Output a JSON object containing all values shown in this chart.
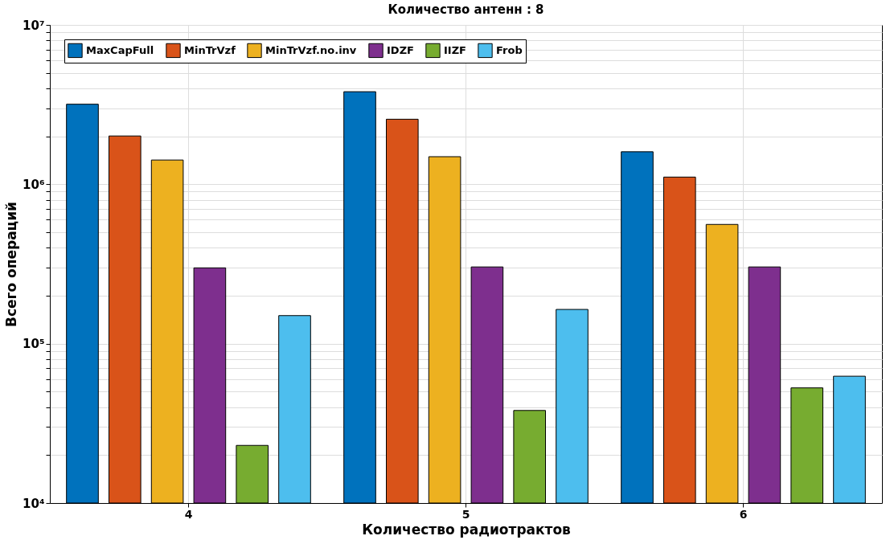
{
  "chart_data": {
    "type": "bar",
    "title": "Количество антенн : 8",
    "xlabel": "Количество радиотрактов",
    "ylabel": "Всего операций",
    "categories": [
      "4",
      "5",
      "6"
    ],
    "series": [
      {
        "name": "MaxCapFull",
        "color": "#0072bd",
        "values": [
          3180000,
          3810000,
          1600000
        ]
      },
      {
        "name": "MinTrVzf",
        "color": "#d95319",
        "values": [
          2010000,
          2560000,
          1110000
        ]
      },
      {
        "name": "MinTrVzf.no.inv",
        "color": "#edb120",
        "values": [
          1420000,
          1490000,
          560000
        ]
      },
      {
        "name": "IDZF",
        "color": "#7e2f8e",
        "values": [
          299000,
          303000,
          303000
        ]
      },
      {
        "name": "IIZF",
        "color": "#77ac30",
        "values": [
          23000,
          38100,
          52800
        ]
      },
      {
        "name": "Frob",
        "color": "#4dbeee",
        "values": [
          150000,
          164000,
          62500
        ]
      }
    ],
    "log": true,
    "ylim": [
      10000,
      10000000
    ],
    "yticks": [
      {
        "value": 10000,
        "label": "10⁴"
      },
      {
        "value": 20000,
        "label": null
      },
      {
        "value": 30000,
        "label": null
      },
      {
        "value": 40000,
        "label": null
      },
      {
        "value": 50000,
        "label": null
      },
      {
        "value": 60000,
        "label": null
      },
      {
        "value": 70000,
        "label": null
      },
      {
        "value": 80000,
        "label": null
      },
      {
        "value": 90000,
        "label": null
      },
      {
        "value": 100000,
        "label": "10⁵"
      },
      {
        "value": 200000,
        "label": null
      },
      {
        "value": 300000,
        "label": null
      },
      {
        "value": 400000,
        "label": null
      },
      {
        "value": 500000,
        "label": null
      },
      {
        "value": 600000,
        "label": null
      },
      {
        "value": 700000,
        "label": null
      },
      {
        "value": 800000,
        "label": null
      },
      {
        "value": 900000,
        "label": null
      },
      {
        "value": 1000000,
        "label": "10⁶"
      },
      {
        "value": 2000000,
        "label": null
      },
      {
        "value": 3000000,
        "label": null
      },
      {
        "value": 4000000,
        "label": null
      },
      {
        "value": 5000000,
        "label": null
      },
      {
        "value": 6000000,
        "label": null
      },
      {
        "value": 7000000,
        "label": null
      },
      {
        "value": 8000000,
        "label": null
      },
      {
        "value": 9000000,
        "label": null
      },
      {
        "value": 10000000,
        "label": "10⁷"
      }
    ],
    "grid": true,
    "legend": "top left"
  }
}
